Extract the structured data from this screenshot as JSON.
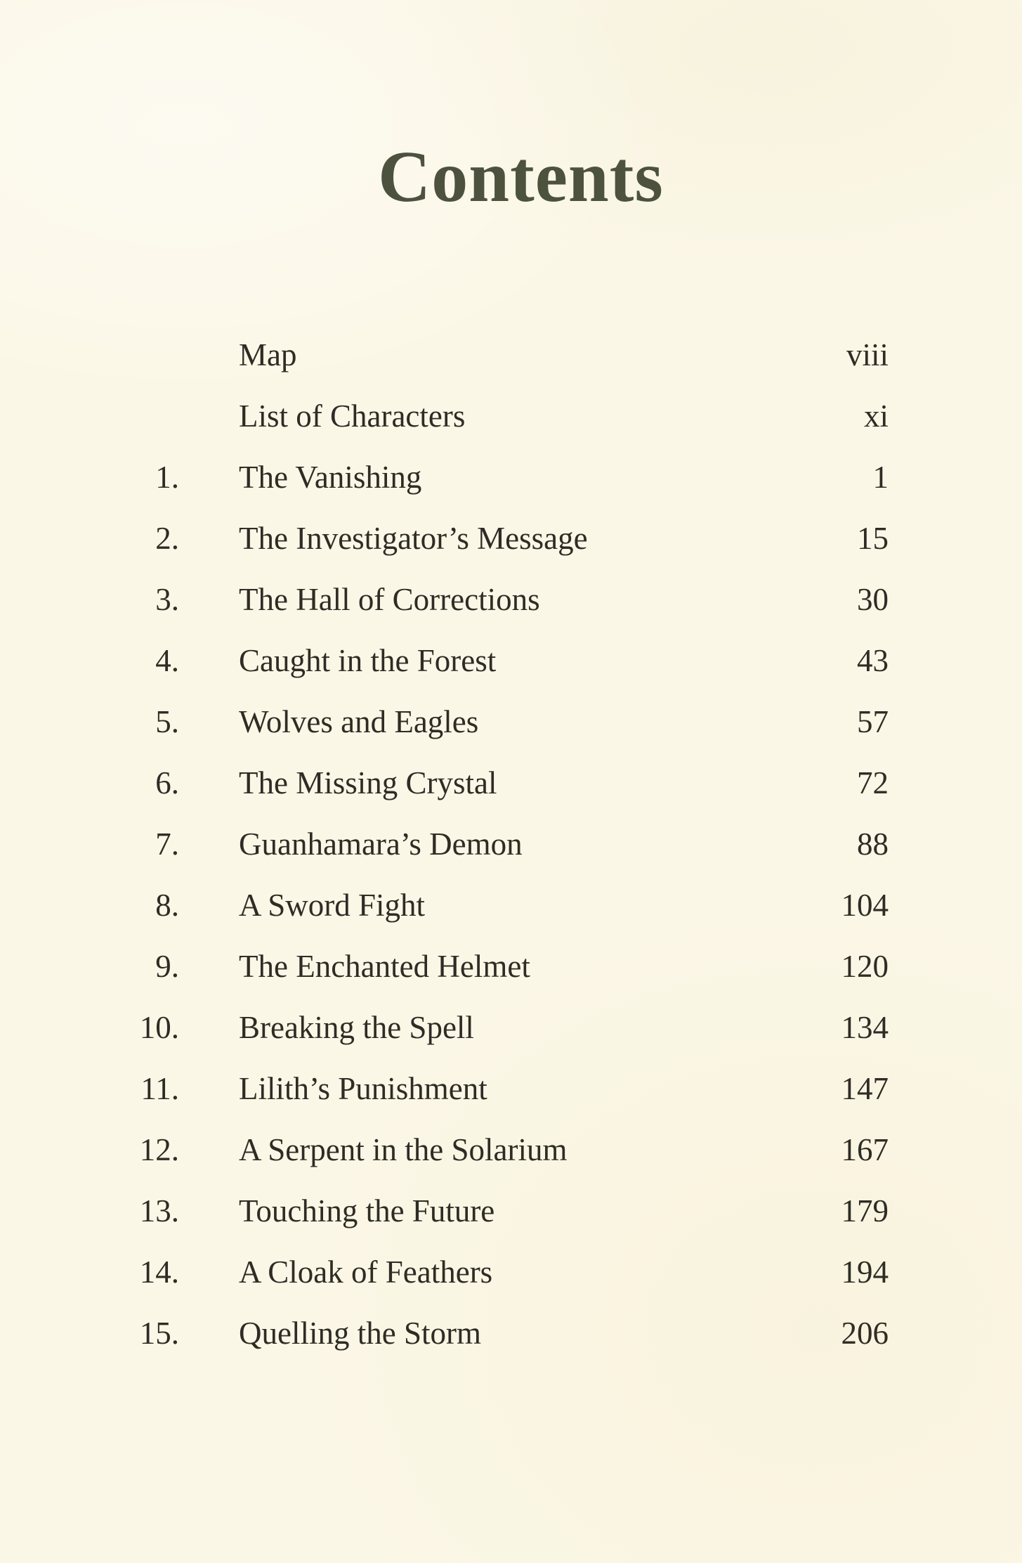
{
  "page": {
    "title": "Contents",
    "colors": {
      "background": "#fbf7e6",
      "title": "#4d523e",
      "text": "#2e2c25"
    },
    "toc": [
      {
        "num": "",
        "title": "Map",
        "page": "viii"
      },
      {
        "num": "",
        "title": "List of Characters",
        "page": "xi"
      },
      {
        "num": "1.",
        "title": "The Vanishing",
        "page": "1"
      },
      {
        "num": "2.",
        "title": "The Investigator’s Message",
        "page": "15"
      },
      {
        "num": "3.",
        "title": "The Hall of Corrections",
        "page": "30"
      },
      {
        "num": "4.",
        "title": "Caught in the Forest",
        "page": "43"
      },
      {
        "num": "5.",
        "title": "Wolves and Eagles",
        "page": "57"
      },
      {
        "num": "6.",
        "title": "The Missing Crystal",
        "page": "72"
      },
      {
        "num": "7.",
        "title": "Guanhamara’s Demon",
        "page": "88"
      },
      {
        "num": "8.",
        "title": "A Sword Fight",
        "page": "104"
      },
      {
        "num": "9.",
        "title": "The Enchanted Helmet",
        "page": "120"
      },
      {
        "num": "10.",
        "title": "Breaking the Spell",
        "page": "134"
      },
      {
        "num": "11.",
        "title": "Lilith’s Punishment",
        "page": "147"
      },
      {
        "num": "12.",
        "title": "A Serpent in the Solarium",
        "page": "167"
      },
      {
        "num": "13.",
        "title": "Touching the Future",
        "page": "179"
      },
      {
        "num": "14.",
        "title": "A Cloak of Feathers",
        "page": "194"
      },
      {
        "num": "15.",
        "title": "Quelling the Storm",
        "page": "206"
      }
    ]
  }
}
